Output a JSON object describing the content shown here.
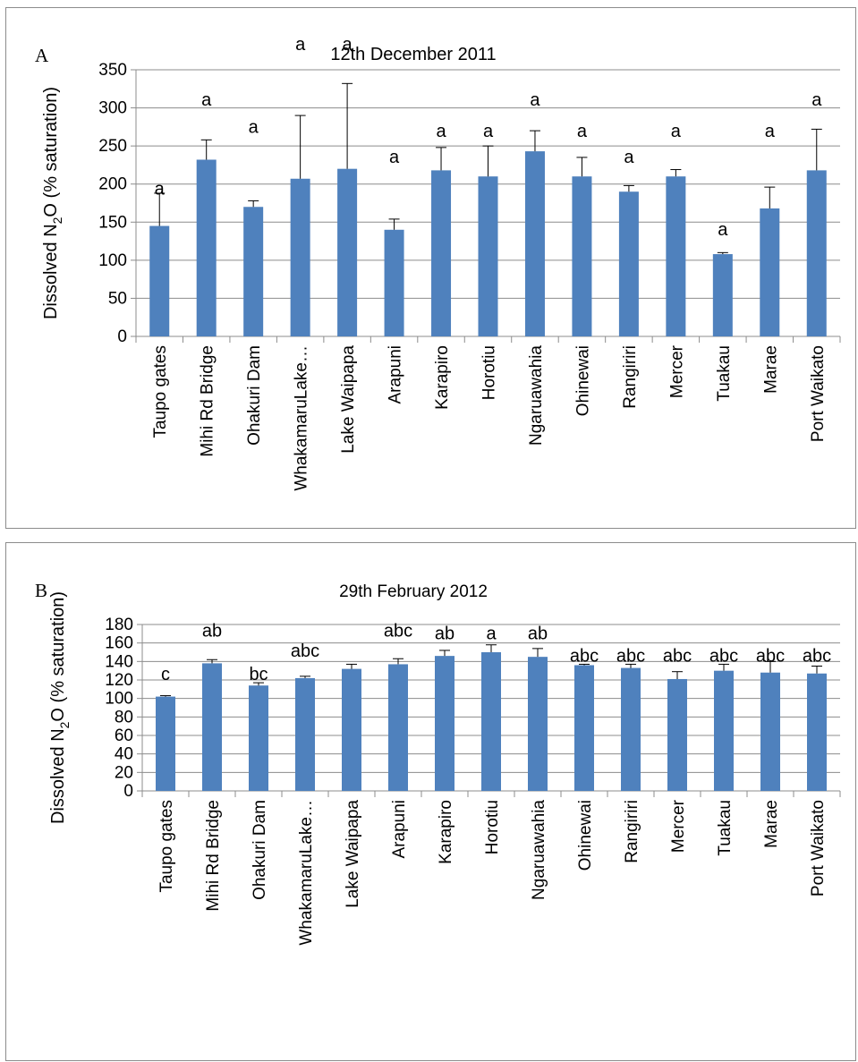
{
  "chart_data": [
    {
      "type": "bar",
      "panel_label": "A",
      "title": "12th December 2011",
      "xlabel": "",
      "ylabel_parts": [
        "Dissolved N",
        "2",
        "O (% saturation)"
      ],
      "ylim": [
        0,
        350
      ],
      "yticks": [
        0,
        50,
        100,
        150,
        200,
        250,
        300,
        350
      ],
      "grid": true,
      "bar_color": "#4f81bd",
      "categories": [
        "Taupo gates",
        "Mihi Rd Bridge",
        "Ohakuri Dam",
        "WhakamaruLake…",
        "Lake Waipapa",
        "Arapuni",
        "Karapiro",
        "Horotiu",
        "Ngaruawahia",
        "Ohinewai",
        "Rangiriri",
        "Mercer",
        "Tuakau",
        "Marae",
        "Port Waikato"
      ],
      "values": [
        145,
        232,
        170,
        207,
        220,
        140,
        218,
        210,
        243,
        210,
        190,
        210,
        108,
        168,
        218
      ],
      "error": [
        43,
        26,
        8,
        83,
        112,
        14,
        30,
        40,
        27,
        25,
        8,
        9,
        2,
        28,
        54
      ],
      "significance": [
        "a",
        "a",
        "a",
        "a",
        "a",
        "a",
        "a",
        "a",
        "a",
        "a",
        "a",
        "a",
        "a",
        "a",
        "a"
      ],
      "significance_y": [
        186,
        303,
        267,
        376,
        376,
        228,
        262,
        262,
        303,
        262,
        228,
        262,
        133,
        262,
        303
      ]
    },
    {
      "type": "bar",
      "panel_label": "B",
      "title": "29th February 2012",
      "xlabel": "",
      "ylabel_parts": [
        "Dissolved N",
        "2",
        "O (% saturation)"
      ],
      "ylim": [
        0,
        180
      ],
      "yticks": [
        0,
        20,
        40,
        60,
        80,
        100,
        120,
        140,
        160,
        180
      ],
      "grid": true,
      "bar_color": "#4f81bd",
      "categories": [
        "Taupo gates",
        "Mihi Rd Bridge",
        "Ohakuri Dam",
        "WhakamaruLake…",
        "Lake Waipapa",
        "Arapuni",
        "Karapiro",
        "Horotiu",
        "Ngaruawahia",
        "Ohinewai",
        "Rangiriri",
        "Mercer",
        "Tuakau",
        "Marae",
        "Port Waikato"
      ],
      "values": [
        102,
        138,
        114,
        122,
        132,
        137,
        146,
        150,
        145,
        136,
        133,
        121,
        130,
        128,
        127
      ],
      "error": [
        1,
        4,
        3,
        2,
        5,
        6,
        6,
        8,
        9,
        1,
        4,
        8,
        7,
        12,
        8
      ],
      "significance": [
        "c",
        "ab",
        "bc",
        "abc",
        "",
        "abc",
        "ab",
        "a",
        "ab",
        "abc",
        "abc",
        "abc",
        "abc",
        "abc",
        "abc"
      ],
      "significance_y": [
        120,
        167,
        120,
        145,
        0,
        167,
        164,
        164,
        164,
        140,
        140,
        140,
        140,
        140,
        140
      ]
    }
  ]
}
